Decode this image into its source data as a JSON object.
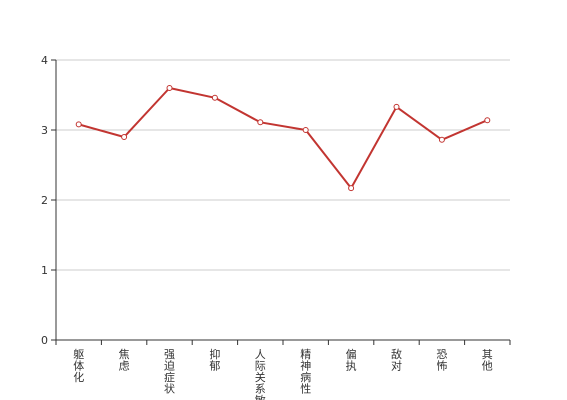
{
  "chart_data": {
    "type": "line",
    "categories": [
      "躯体化",
      "焦虑",
      "强迫症状",
      "抑郁",
      "人际关系敏感",
      "精神病性",
      "偏执",
      "敌对",
      "恐怖",
      "其他"
    ],
    "series": [
      {
        "values": [
          3.08,
          2.9,
          3.6,
          3.46,
          3.11,
          3.0,
          2.17,
          3.33,
          2.86,
          3.14
        ]
      }
    ],
    "ylim": [
      0,
      4
    ],
    "yticks": [
      0,
      1,
      2,
      3,
      4
    ],
    "grid": true,
    "colors": {
      "line": "#c23531",
      "grid": "#cccccc",
      "axis": "#333333"
    }
  }
}
